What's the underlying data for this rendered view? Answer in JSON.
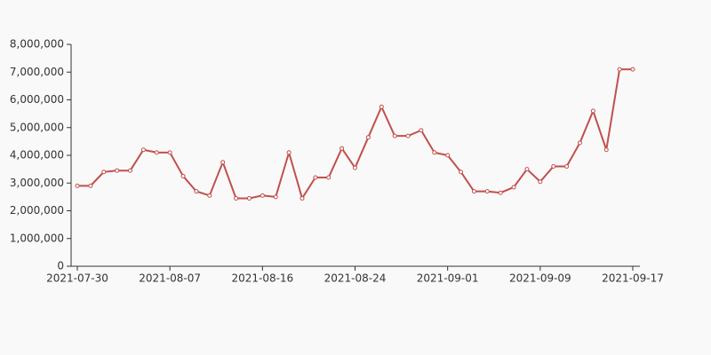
{
  "chart_data": {
    "type": "line",
    "categories": [
      "2021-07-30",
      null,
      null,
      null,
      null,
      null,
      null,
      "2021-08-07",
      null,
      null,
      null,
      null,
      null,
      null,
      "2021-08-16",
      null,
      null,
      null,
      null,
      null,
      null,
      "2021-08-24",
      null,
      null,
      null,
      null,
      null,
      null,
      "2021-09-01",
      null,
      null,
      null,
      null,
      null,
      null,
      "2021-09-09",
      null,
      null,
      null,
      null,
      null,
      null,
      "2021-09-17"
    ],
    "series": [
      {
        "color": "#c0504d",
        "values": [
          2900000,
          2900000,
          3400000,
          3450000,
          3450000,
          4200000,
          4100000,
          4100000,
          3250000,
          2700000,
          2550000,
          3750000,
          2450000,
          2450000,
          2550000,
          2500000,
          4100000,
          2450000,
          3200000,
          3200000,
          4250000,
          3550000,
          4650000,
          5750000,
          4700000,
          4700000,
          4900000,
          4100000,
          4000000,
          3400000,
          2700000,
          2700000,
          2650000,
          2850000,
          3500000,
          3050000,
          3600000,
          3600000,
          4450000,
          5600000,
          4200000,
          7100000,
          7100000
        ]
      }
    ],
    "ylim": [
      0,
      8000000
    ],
    "yticks": [
      0,
      {
        "value": 1000000,
        "label": "1,000,000"
      },
      {
        "value": 2000000,
        "label": "2,000,000"
      },
      {
        "value": 3000000,
        "label": "3,000,000"
      },
      {
        "value": 4000000,
        "label": "4,000,000"
      },
      {
        "value": 5000000,
        "label": "5,000,000"
      },
      {
        "value": 6000000,
        "label": "6,000,000"
      },
      {
        "value": 7000000,
        "label": "7,000,000"
      },
      {
        "value": 8000000,
        "label": "8,000,000"
      }
    ]
  }
}
